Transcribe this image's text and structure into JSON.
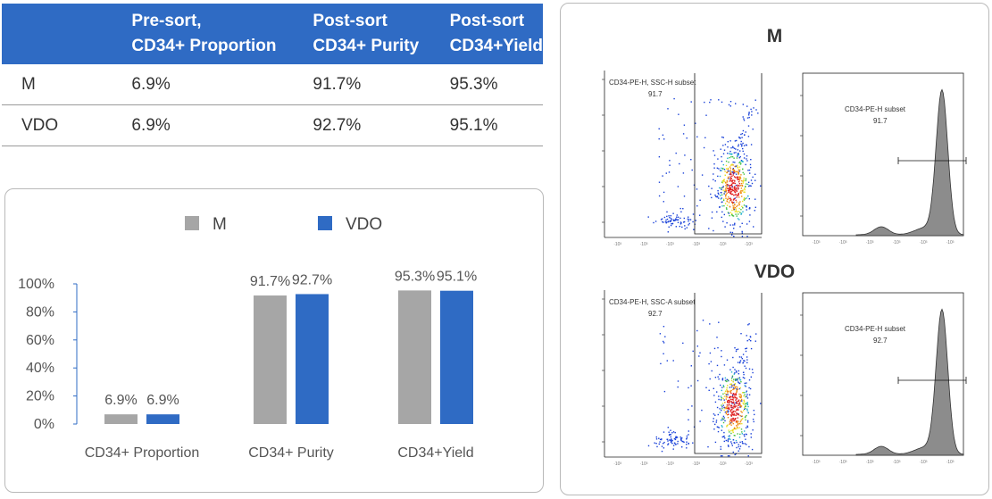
{
  "table": {
    "headers": [
      "",
      "Pre-sort,\nCD34+ Proportion",
      "Post-sort\nCD34+ Purity",
      "Post-sort\nCD34+Yield"
    ],
    "rows": [
      {
        "label": "M",
        "proportion": "6.9%",
        "purity": "91.7%",
        "yield": "95.3%"
      },
      {
        "label": "VDO",
        "proportion": "6.9%",
        "purity": "92.7%",
        "yield": "95.1%"
      }
    ]
  },
  "chart_data": {
    "type": "bar",
    "categories": [
      "CD34+ Proportion",
      "CD34+ Purity",
      "CD34+Yield"
    ],
    "series": [
      {
        "name": "M",
        "color": "#a6a6a6",
        "values": [
          6.9,
          91.7,
          95.3
        ],
        "labels": [
          "6.9%",
          "91.7%",
          "95.3%"
        ]
      },
      {
        "name": "VDO",
        "color": "#2f6bc4",
        "values": [
          6.9,
          92.7,
          95.1
        ],
        "labels": [
          "6.9%",
          "92.7%",
          "95.1%"
        ]
      }
    ],
    "yticks": [
      "0%",
      "20%",
      "40%",
      "60%",
      "80%",
      "100%"
    ],
    "ylim": [
      0,
      100
    ],
    "legend": "top-center",
    "grid": false
  },
  "flow": {
    "sections": [
      {
        "title": "M",
        "scatter_label": "CD34-PE-H, SSC-H subset",
        "scatter_value": "91.7",
        "hist_label": "CD34-PE-H subset",
        "hist_value": "91.7"
      },
      {
        "title": "VDO",
        "scatter_label": "CD34-PE-H, SSC-A subset",
        "scatter_value": "92.7",
        "hist_label": "CD34-PE-H subset",
        "hist_value": "92.7"
      }
    ],
    "colors": {
      "axis": "#222222",
      "gate": "#111111",
      "hist_fill": "#8c8c8c"
    }
  }
}
